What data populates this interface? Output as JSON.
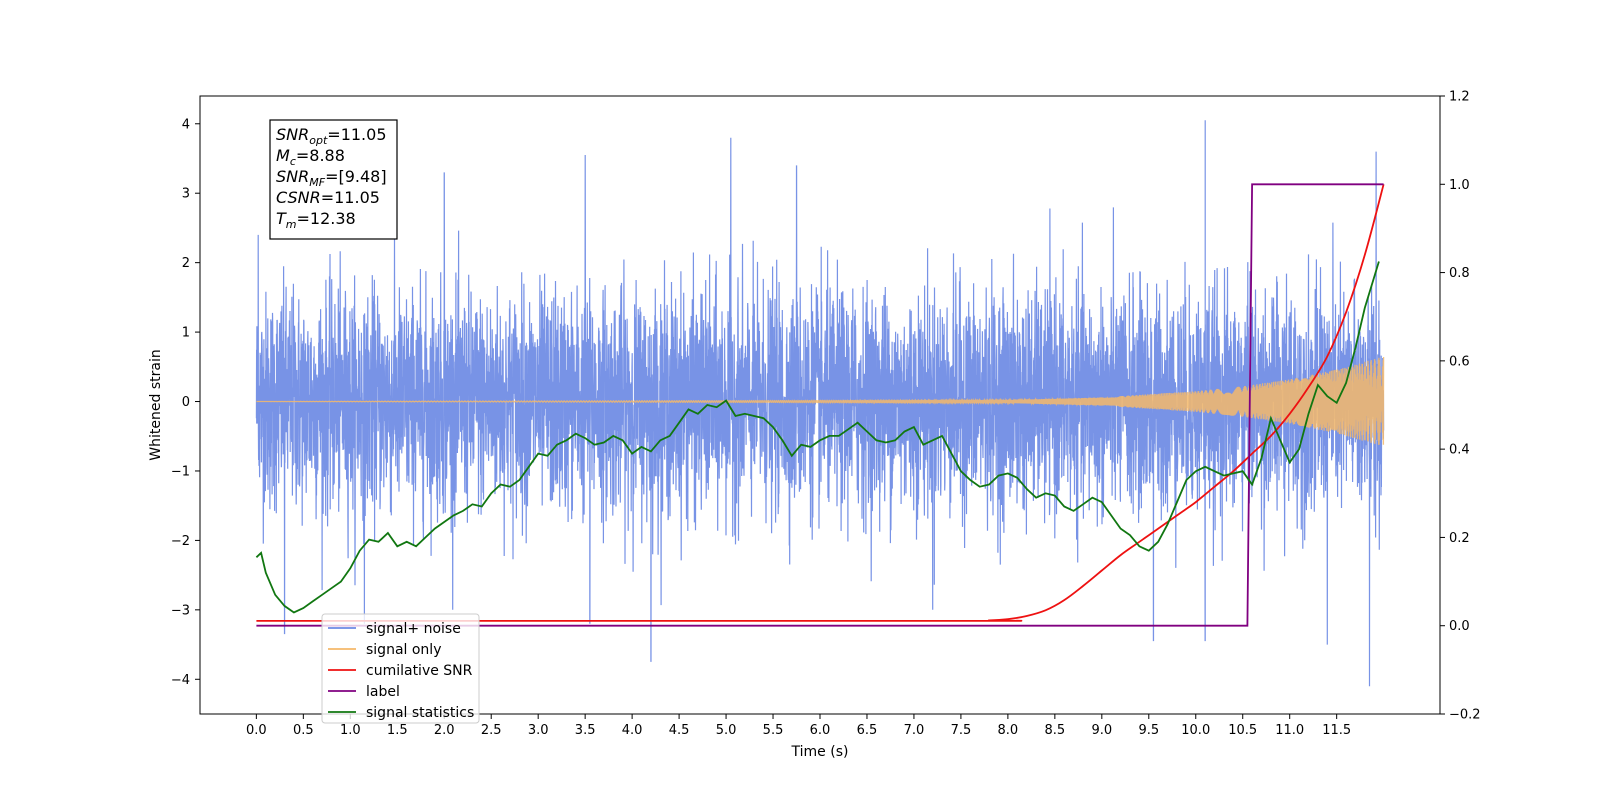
{
  "chart_data": {
    "type": "line",
    "xlabel": "Time (s)",
    "ylabel_left": "Whitened strain",
    "ylabel_right": "",
    "xlim": [
      -0.6,
      12.6
    ],
    "ylim_left": [
      -4.5,
      4.4
    ],
    "ylim_right": [
      -0.2,
      1.2
    ],
    "x_ticks": [
      0.0,
      0.5,
      1.0,
      1.5,
      2.0,
      2.5,
      3.0,
      3.5,
      4.0,
      4.5,
      5.0,
      5.5,
      6.0,
      6.5,
      7.0,
      7.5,
      8.0,
      8.5,
      9.0,
      9.5,
      10.0,
      10.5,
      11.0,
      11.5
    ],
    "x_tick_labels": [
      "0.0",
      "0.5",
      "1.0",
      "1.5",
      "2.0",
      "2.5",
      "3.0",
      "3.5",
      "4.0",
      "4.5",
      "5.0",
      "5.5",
      "6.0",
      "6.5",
      "7.0",
      "7.5",
      "8.0",
      "8.5",
      "9.0",
      "9.5",
      "10.0",
      "10.5",
      "11.0",
      "11.5"
    ],
    "y_left_ticks": [
      -4,
      -3,
      -2,
      -1,
      0,
      1,
      2,
      3,
      4
    ],
    "y_left_tick_labels": [
      "−4",
      "−3",
      "−2",
      "−1",
      "0",
      "1",
      "2",
      "3",
      "4"
    ],
    "y_right_ticks": [
      -0.2,
      0.0,
      0.2,
      0.4,
      0.6,
      0.8,
      1.0,
      1.2
    ],
    "y_right_tick_labels": [
      "−0.2",
      "0.0",
      "0.2",
      "0.4",
      "0.6",
      "0.8",
      "1.0",
      "1.2"
    ],
    "grid": false,
    "legend_position": "bottom-left",
    "annotation": {
      "lines": [
        {
          "main": "SNR",
          "sub": "opt",
          "value": "=11.05"
        },
        {
          "main": "M",
          "sub": "c",
          "value": "=8.88"
        },
        {
          "main": "SNR",
          "sub": "MF",
          "value": "=[9.48]"
        },
        {
          "main": "CSNR",
          "sub": "",
          "value": "=11.05"
        },
        {
          "main": "T",
          "sub": "m",
          "value": "=12.38"
        }
      ]
    },
    "series": [
      {
        "name": "signal+ noise",
        "axis": "left",
        "color": "#6c8ae4",
        "style": "noise",
        "x_range": [
          0.0,
          12.0
        ],
        "typical_amplitude": 1.3,
        "notable_peaks": [
          {
            "x": 0.02,
            "y": 2.4
          },
          {
            "x": 0.3,
            "y": -3.35
          },
          {
            "x": 1.15,
            "y": -3.2
          },
          {
            "x": 2.0,
            "y": 3.3
          },
          {
            "x": 3.5,
            "y": 3.55
          },
          {
            "x": 3.55,
            "y": -3.2
          },
          {
            "x": 4.2,
            "y": -3.75
          },
          {
            "x": 5.05,
            "y": 3.8
          },
          {
            "x": 5.75,
            "y": 3.4
          },
          {
            "x": 7.2,
            "y": -3.0
          },
          {
            "x": 9.55,
            "y": -3.45
          },
          {
            "x": 10.1,
            "y": 4.05
          },
          {
            "x": 10.1,
            "y": -3.45
          },
          {
            "x": 11.4,
            "y": -3.5
          },
          {
            "x": 11.85,
            "y": -4.1
          },
          {
            "x": 11.92,
            "y": 3.6
          }
        ]
      },
      {
        "name": "signal only",
        "axis": "left",
        "color": "#f5b86a",
        "style": "chirp",
        "x_range": [
          0.0,
          12.0
        ],
        "envelope": [
          [
            0.0,
            0.0
          ],
          [
            8.0,
            0.02
          ],
          [
            9.0,
            0.06
          ],
          [
            10.0,
            0.15
          ],
          [
            10.5,
            0.22
          ],
          [
            11.0,
            0.32
          ],
          [
            11.5,
            0.46
          ],
          [
            12.0,
            0.65
          ]
        ]
      },
      {
        "name": "cumilative SNR",
        "axis": "right",
        "color": "#ee1111",
        "x": [
          0.0,
          7.5,
          7.8,
          8.0,
          8.2,
          8.4,
          8.6,
          8.8,
          9.0,
          9.2,
          9.4,
          9.6,
          9.8,
          10.0,
          10.2,
          10.4,
          10.6,
          10.8,
          11.0,
          11.2,
          11.4,
          11.6,
          11.8,
          12.0
        ],
        "y": [
          0.011,
          0.011,
          0.012,
          0.015,
          0.022,
          0.035,
          0.058,
          0.09,
          0.125,
          0.16,
          0.19,
          0.22,
          0.25,
          0.28,
          0.315,
          0.35,
          0.39,
          0.43,
          0.48,
          0.54,
          0.61,
          0.71,
          0.84,
          1.0
        ]
      },
      {
        "name": "label",
        "axis": "right",
        "color": "#800080",
        "x": [
          0.0,
          10.55,
          10.6,
          12.0
        ],
        "y": [
          0.0,
          0.0,
          1.0,
          1.0
        ]
      },
      {
        "name": "signal statistics",
        "axis": "right",
        "color": "#117711",
        "x": [
          0.0,
          0.05,
          0.1,
          0.2,
          0.3,
          0.4,
          0.5,
          0.6,
          0.7,
          0.8,
          0.9,
          1.0,
          1.1,
          1.2,
          1.3,
          1.4,
          1.5,
          1.6,
          1.7,
          1.8,
          1.9,
          2.0,
          2.1,
          2.2,
          2.3,
          2.4,
          2.5,
          2.6,
          2.7,
          2.8,
          2.9,
          3.0,
          3.1,
          3.2,
          3.3,
          3.4,
          3.5,
          3.6,
          3.7,
          3.8,
          3.9,
          4.0,
          4.1,
          4.2,
          4.3,
          4.4,
          4.5,
          4.6,
          4.7,
          4.8,
          4.9,
          5.0,
          5.1,
          5.2,
          5.3,
          5.4,
          5.5,
          5.6,
          5.7,
          5.8,
          5.9,
          6.0,
          6.1,
          6.2,
          6.3,
          6.4,
          6.5,
          6.6,
          6.7,
          6.8,
          6.9,
          7.0,
          7.1,
          7.2,
          7.3,
          7.4,
          7.5,
          7.6,
          7.7,
          7.8,
          7.9,
          8.0,
          8.1,
          8.2,
          8.3,
          8.4,
          8.5,
          8.6,
          8.7,
          8.8,
          8.9,
          9.0,
          9.1,
          9.2,
          9.3,
          9.4,
          9.5,
          9.6,
          9.7,
          9.8,
          9.9,
          10.0,
          10.1,
          10.2,
          10.3,
          10.4,
          10.5,
          10.6,
          10.7,
          10.8,
          10.9,
          11.0,
          11.1,
          11.2,
          11.3,
          11.4,
          11.5,
          11.6,
          11.7,
          11.8,
          11.9,
          11.95
        ],
        "y": [
          0.155,
          0.165,
          0.12,
          0.07,
          0.045,
          0.03,
          0.04,
          0.055,
          0.07,
          0.085,
          0.1,
          0.13,
          0.17,
          0.195,
          0.19,
          0.21,
          0.18,
          0.19,
          0.18,
          0.2,
          0.22,
          0.235,
          0.25,
          0.26,
          0.275,
          0.27,
          0.3,
          0.32,
          0.315,
          0.33,
          0.36,
          0.39,
          0.385,
          0.41,
          0.42,
          0.435,
          0.425,
          0.41,
          0.415,
          0.43,
          0.42,
          0.39,
          0.405,
          0.395,
          0.42,
          0.43,
          0.46,
          0.49,
          0.48,
          0.5,
          0.495,
          0.51,
          0.475,
          0.48,
          0.475,
          0.47,
          0.45,
          0.42,
          0.385,
          0.41,
          0.405,
          0.42,
          0.43,
          0.43,
          0.445,
          0.46,
          0.44,
          0.42,
          0.415,
          0.42,
          0.44,
          0.45,
          0.41,
          0.42,
          0.43,
          0.39,
          0.35,
          0.33,
          0.315,
          0.32,
          0.34,
          0.345,
          0.335,
          0.31,
          0.29,
          0.3,
          0.295,
          0.27,
          0.26,
          0.275,
          0.29,
          0.28,
          0.25,
          0.22,
          0.205,
          0.18,
          0.17,
          0.19,
          0.23,
          0.28,
          0.33,
          0.35,
          0.36,
          0.35,
          0.34,
          0.345,
          0.35,
          0.32,
          0.38,
          0.47,
          0.42,
          0.37,
          0.4,
          0.48,
          0.545,
          0.52,
          0.505,
          0.55,
          0.63,
          0.72,
          0.79,
          0.825
        ]
      }
    ]
  }
}
